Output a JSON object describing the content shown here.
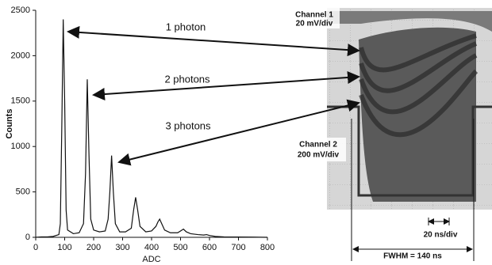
{
  "chart_data": {
    "type": "line",
    "x_label": "ADC",
    "y_label": "Counts",
    "x": [
      0,
      20,
      40,
      60,
      80,
      85,
      90,
      95,
      100,
      105,
      110,
      130,
      150,
      165,
      172,
      178,
      184,
      190,
      200,
      220,
      240,
      250,
      256,
      262,
      268,
      275,
      290,
      310,
      330,
      338,
      345,
      352,
      360,
      380,
      400,
      415,
      422,
      428,
      435,
      445,
      465,
      490,
      500,
      510,
      520,
      535,
      560,
      580,
      590,
      600,
      620,
      650,
      700,
      750,
      800
    ],
    "series": [
      {
        "color": "#111111",
        "values": [
          0,
          5,
          5,
          10,
          30,
          150,
          1200,
          2400,
          1500,
          300,
          80,
          40,
          50,
          150,
          700,
          1740,
          900,
          200,
          80,
          60,
          70,
          200,
          500,
          900,
          500,
          150,
          60,
          60,
          100,
          300,
          440,
          300,
          120,
          60,
          70,
          120,
          170,
          200,
          150,
          80,
          50,
          50,
          70,
          90,
          60,
          40,
          30,
          25,
          30,
          20,
          10,
          5,
          3,
          2,
          0
        ]
      }
    ],
    "xlim": [
      0,
      800
    ],
    "xticks": [
      0,
      100,
      200,
      300,
      400,
      500,
      600,
      700,
      800
    ],
    "ylim": [
      0,
      2500
    ],
    "yticks": [
      0,
      500,
      1000,
      1500,
      2000,
      2500
    ],
    "annotations": [
      "1 photon",
      "2 photons",
      "3 photons"
    ]
  },
  "oscilloscope": {
    "channel_1": "Channel 1",
    "channel_1_scale": "20 mV/div",
    "channel_2": "Channel 2",
    "channel_2_scale": "200 mV/div",
    "time_scale": "20 ns/div",
    "fwhm": "FWHM = 140 ns"
  }
}
